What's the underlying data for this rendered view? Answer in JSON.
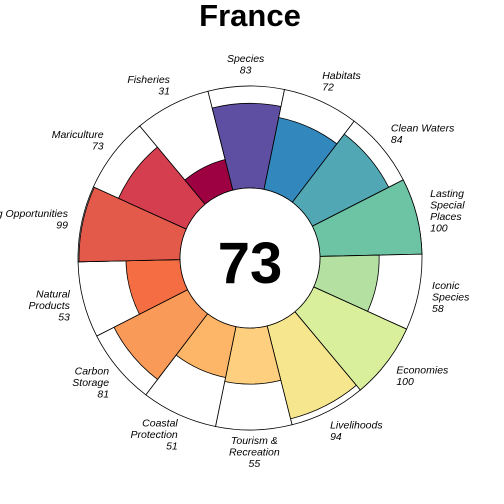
{
  "chart_data": {
    "type": "flower",
    "title": "France",
    "overall_score": "73",
    "max_value": 100,
    "petals": [
      {
        "name": "Natural Products",
        "value": 53,
        "color": "#F46D43"
      },
      {
        "name": "Artisanal Fishing Opportunities",
        "value": 99,
        "color": "#E45A4A"
      },
      {
        "name": "Mariculture",
        "value": 73,
        "color": "#D53E4F"
      },
      {
        "name": "Fisheries",
        "value": 31,
        "color": "#9E0142"
      },
      {
        "name": "Species",
        "value": 83,
        "color": "#5E4FA2"
      },
      {
        "name": "Habitats",
        "value": 72,
        "color": "#3288BD"
      },
      {
        "name": "Clean Waters",
        "value": 84,
        "color": "#51A8B4"
      },
      {
        "name": "Lasting Special Places",
        "value": 100,
        "color": "#6CC4A4"
      },
      {
        "name": "Iconic Species",
        "value": 58,
        "color": "#B4E0A1"
      },
      {
        "name": "Economies",
        "value": 100,
        "color": "#D9EF9B"
      },
      {
        "name": "Livelihoods",
        "value": 94,
        "color": "#F6E68D"
      },
      {
        "name": "Tourism & Recreation",
        "value": 55,
        "color": "#FDCF7E"
      },
      {
        "name": "Coastal Protection",
        "value": 51,
        "color": "#FDB567"
      },
      {
        "name": "Carbon Storage",
        "value": 81,
        "color": "#F99A59"
      }
    ]
  }
}
